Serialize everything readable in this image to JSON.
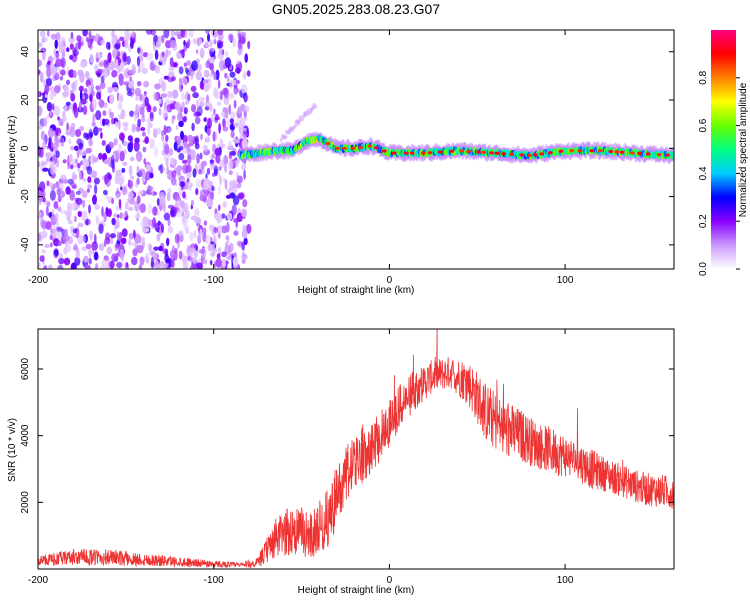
{
  "title": "GN05.2025.283.08.23.G07",
  "colors": {
    "snr_line": "#ee3333",
    "frame": "#000000",
    "background": "#ffffff"
  },
  "chart_data": [
    {
      "type": "heatmap",
      "title": "GN05.2025.283.08.23.G07",
      "xlabel": "Height of straight line (km)",
      "ylabel": "Frequency (Hz)",
      "xlim": [
        -200,
        162
      ],
      "ylim": [
        -50,
        49
      ],
      "xticks": [
        -200,
        -100,
        0,
        100
      ],
      "yticks": [
        -40,
        -20,
        0,
        20,
        40
      ],
      "noise_region": {
        "x_range": [
          -200,
          -80
        ],
        "description_values": "random speckle across full frequency range"
      },
      "signal_track": [
        {
          "x": -85,
          "y": -3
        },
        {
          "x": -75,
          "y": -2
        },
        {
          "x": -65,
          "y": -1
        },
        {
          "x": -55,
          "y": -1
        },
        {
          "x": -47,
          "y": 3
        },
        {
          "x": -40,
          "y": 4
        },
        {
          "x": -30,
          "y": 0
        },
        {
          "x": -20,
          "y": 0
        },
        {
          "x": -10,
          "y": 1
        },
        {
          "x": 0,
          "y": -2
        },
        {
          "x": 20,
          "y": -2
        },
        {
          "x": 40,
          "y": -1
        },
        {
          "x": 60,
          "y": -2
        },
        {
          "x": 80,
          "y": -3
        },
        {
          "x": 100,
          "y": -1
        },
        {
          "x": 120,
          "y": -1
        },
        {
          "x": 140,
          "y": -2
        },
        {
          "x": 162,
          "y": -3
        }
      ],
      "colorbar": {
        "label": "Normalized spectral amplitude",
        "range": [
          0,
          1
        ],
        "ticks": [
          "0.0",
          "0.2",
          "0.4",
          "0.6",
          "0.8"
        ],
        "colormap": [
          "#ffffff",
          "#cc99ff",
          "#8800ff",
          "#0000ff",
          "#00ccff",
          "#00ff80",
          "#66ff00",
          "#ffff00",
          "#ff8000",
          "#ff0000",
          "#ff0080"
        ]
      }
    },
    {
      "type": "line",
      "xlabel": "Height of straight line (km)",
      "ylabel": "SNR (10 * v/v)",
      "xlim": [
        -200,
        162
      ],
      "ylim": [
        0,
        7200
      ],
      "xticks": [
        -200,
        -100,
        0,
        100
      ],
      "yticks": [
        2000,
        4000,
        6000
      ],
      "series": [
        {
          "name": "SNR",
          "envelope_x": [
            -200,
            -190,
            -180,
            -160,
            -140,
            -120,
            -100,
            -85,
            -75,
            -65,
            -55,
            -45,
            -35,
            -25,
            -15,
            -5,
            5,
            15,
            25,
            35,
            45,
            55,
            65,
            75,
            85,
            95,
            105,
            115,
            125,
            135,
            145,
            162
          ],
          "envelope_mean": [
            250,
            300,
            350,
            350,
            280,
            220,
            150,
            120,
            180,
            900,
            1200,
            1000,
            1500,
            2800,
            3500,
            4000,
            4800,
            5400,
            5800,
            5900,
            5600,
            4700,
            4200,
            4000,
            3700,
            3500,
            3300,
            3000,
            2800,
            2600,
            2400,
            2300
          ],
          "envelope_spread": [
            150,
            200,
            250,
            250,
            200,
            150,
            100,
            80,
            150,
            600,
            800,
            700,
            900,
            900,
            900,
            800,
            700,
            600,
            500,
            500,
            700,
            900,
            900,
            800,
            700,
            700,
            600,
            600,
            500,
            500,
            500,
            500
          ]
        }
      ]
    }
  ]
}
